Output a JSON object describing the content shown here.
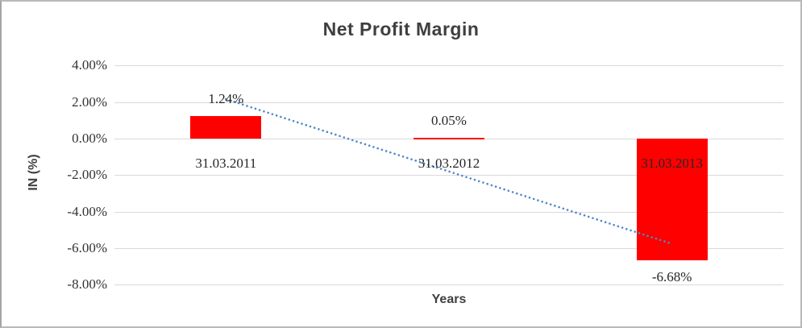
{
  "chart_data": {
    "type": "bar",
    "title": "Net Profit Margin",
    "xlabel": "Years",
    "ylabel": "IN (%)",
    "categories": [
      "31.03.2011",
      "31.03.2012",
      "31.03.2013"
    ],
    "values": [
      1.24,
      0.05,
      -6.68
    ],
    "data_labels": [
      "1.24%",
      "0.05%",
      "-6.68%"
    ],
    "y_tick_values": [
      4,
      2,
      0,
      -2,
      -4,
      -6,
      -8
    ],
    "y_tick_labels": [
      "4.00%",
      "2.00%",
      "0.00%",
      "-2.00%",
      "-4.00%",
      "-6.00%",
      "-8.00%"
    ],
    "ylim": [
      -8,
      4
    ],
    "grid": true,
    "legend": false,
    "bar_color": "#ff0000",
    "gridline_color": "#d9d9d9",
    "trendline": {
      "type": "linear",
      "style": "dotted",
      "color": "#4e87c8"
    }
  }
}
